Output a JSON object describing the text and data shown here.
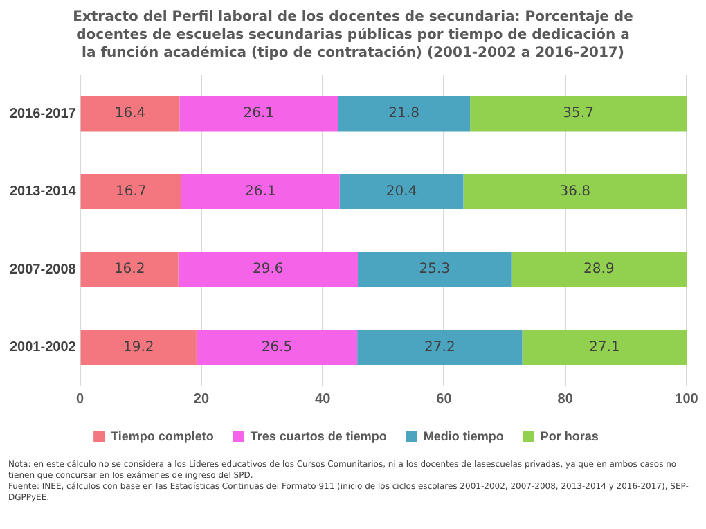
{
  "chart_data": {
    "type": "bar",
    "orientation": "horizontal",
    "stacked": true,
    "title": "Extracto del Perfil laboral de los docentes de secundaria: Porcentaje de docentes de escuelas secundarias públicas por tiempo de dedicación a la función académica (tipo de contratación) (2001-2002 a 2016-2017)",
    "categories": [
      "2016-2017",
      "2013-2014",
      "2007-2008",
      "2001-2002"
    ],
    "series": [
      {
        "name": "Tiempo completo",
        "color": "#f4777f",
        "values": [
          16.4,
          16.7,
          16.2,
          19.2
        ]
      },
      {
        "name": "Tres cuartos de tiempo",
        "color": "#f564e8",
        "values": [
          26.1,
          26.1,
          29.6,
          26.5
        ]
      },
      {
        "name": "Medio tiempo",
        "color": "#4ba5c0",
        "values": [
          21.8,
          20.4,
          25.3,
          27.2
        ]
      },
      {
        "name": "Por horas",
        "color": "#92d050",
        "values": [
          35.7,
          36.8,
          28.9,
          27.1
        ]
      }
    ],
    "xlim": [
      0,
      100
    ],
    "xticks": [
      0,
      20,
      40,
      60,
      80,
      100
    ],
    "grid": "x",
    "legend": "bottom",
    "data_labels": true,
    "annotations": [
      "Nota: en este cálculo no se considera a los Líderes educativos de los Cursos Comunitarios, ni a los docentes de lasescuelas privadas, ya que en ambos casos no tienen que concursar en los exámenes de ingreso del SPD.",
      "Fuente: INEE, cálculos con base en las Estadísticas Continuas del Formato 911 (inicio de los ciclos escolares 2001-2002, 2007-2008, 2013-2014 y 2016-2017), SEP-DGPPyEE."
    ]
  }
}
